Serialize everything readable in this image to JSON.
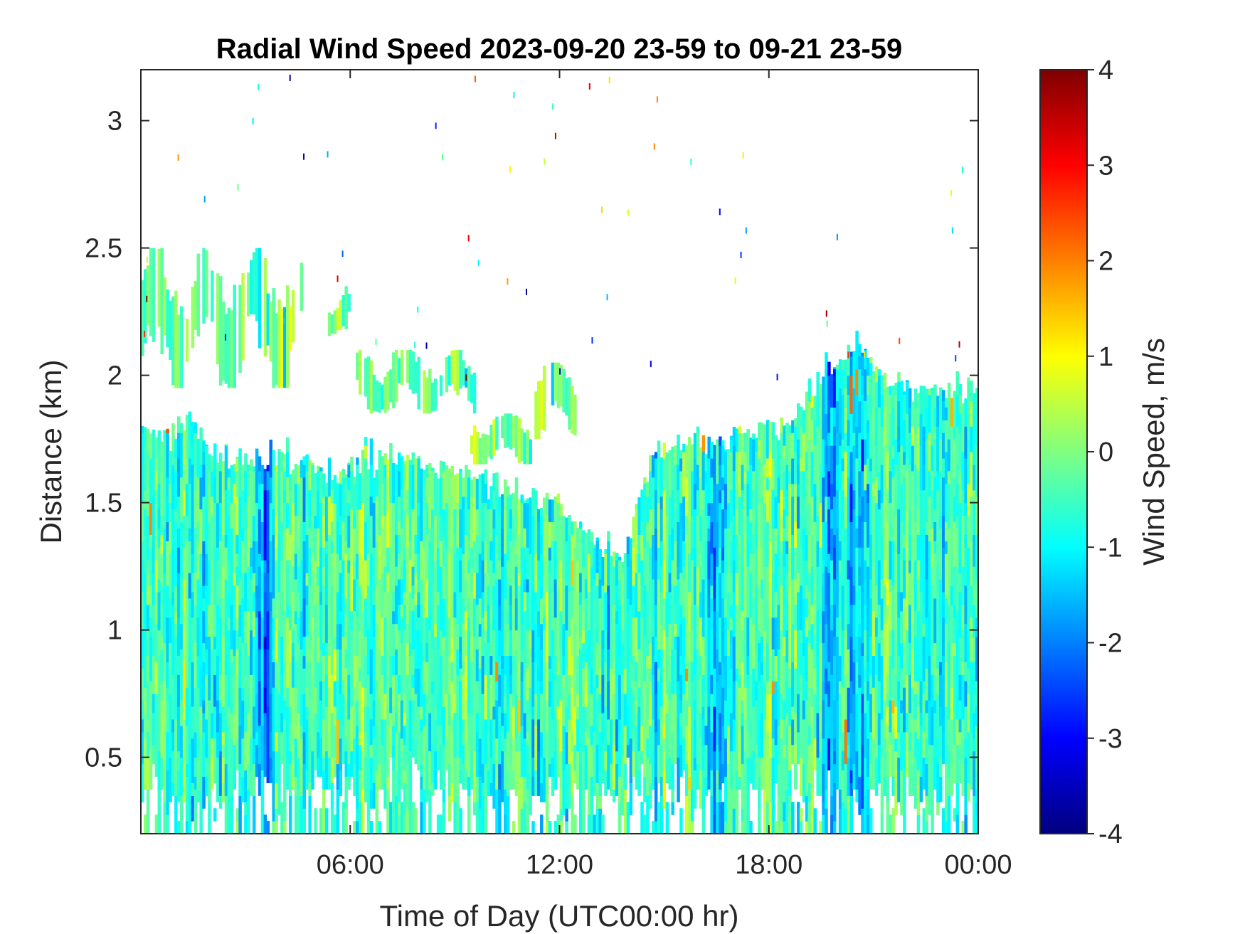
{
  "chart_data": {
    "type": "heatmap",
    "title": "Radial Wind Speed 2023-09-20 23-59 to 09-21 23-59",
    "xlabel": "Time of Day (UTC00:00 hr)",
    "ylabel": "Distance (km)",
    "colorbar_label": "Wind Speed, m/s",
    "x_range_hours": [
      0,
      24
    ],
    "x_ticks": [
      {
        "value": 6,
        "label": "06:00"
      },
      {
        "value": 12,
        "label": "12:00"
      },
      {
        "value": 18,
        "label": "18:00"
      },
      {
        "value": 24,
        "label": "00:00"
      }
    ],
    "ylim": [
      0.2,
      3.2
    ],
    "y_ticks": [
      {
        "value": 0.5,
        "label": "0.5"
      },
      {
        "value": 1,
        "label": "1"
      },
      {
        "value": 1.5,
        "label": "1.5"
      },
      {
        "value": 2,
        "label": "2"
      },
      {
        "value": 2.5,
        "label": "2.5"
      },
      {
        "value": 3,
        "label": "3"
      }
    ],
    "clim": [
      -4,
      4
    ],
    "colorbar_ticks": [
      {
        "value": 4,
        "label": "4"
      },
      {
        "value": 3,
        "label": "3"
      },
      {
        "value": 2,
        "label": "2"
      },
      {
        "value": 1,
        "label": "1"
      },
      {
        "value": 0,
        "label": "0"
      },
      {
        "value": -1,
        "label": "-1"
      },
      {
        "value": -2,
        "label": "-2"
      },
      {
        "value": -3,
        "label": "-3"
      },
      {
        "value": -4,
        "label": "-4"
      }
    ],
    "colormap": "jet",
    "grid": false,
    "data_top_profile_km": [
      {
        "hour": 0.0,
        "top": 1.8
      },
      {
        "hour": 0.8,
        "top": 1.75
      },
      {
        "hour": 1.4,
        "top": 1.85
      },
      {
        "hour": 2.0,
        "top": 1.7
      },
      {
        "hour": 4.0,
        "top": 1.68
      },
      {
        "hour": 5.5,
        "top": 1.62
      },
      {
        "hour": 6.5,
        "top": 1.68
      },
      {
        "hour": 8.0,
        "top": 1.67
      },
      {
        "hour": 9.0,
        "top": 1.62
      },
      {
        "hour": 10.0,
        "top": 1.58
      },
      {
        "hour": 11.0,
        "top": 1.55
      },
      {
        "hour": 12.0,
        "top": 1.48
      },
      {
        "hour": 13.0,
        "top": 1.35
      },
      {
        "hour": 13.8,
        "top": 1.28
      },
      {
        "hour": 14.3,
        "top": 1.55
      },
      {
        "hour": 15.0,
        "top": 1.72
      },
      {
        "hour": 16.5,
        "top": 1.74
      },
      {
        "hour": 17.5,
        "top": 1.8
      },
      {
        "hour": 18.5,
        "top": 1.82
      },
      {
        "hour": 19.5,
        "top": 2.0
      },
      {
        "hour": 20.5,
        "top": 2.12
      },
      {
        "hour": 21.5,
        "top": 1.98
      },
      {
        "hour": 22.5,
        "top": 1.95
      },
      {
        "hour": 23.5,
        "top": 1.95
      },
      {
        "hour": 24.0,
        "top": 1.95
      }
    ],
    "cloud_layers_km": [
      {
        "hour_start": 0.0,
        "hour_end": 4.6,
        "bottom": 1.95,
        "top": 2.5
      },
      {
        "hour_start": 5.2,
        "hour_end": 6.0,
        "bottom": 2.15,
        "top": 2.35
      },
      {
        "hour_start": 6.2,
        "hour_end": 9.6,
        "bottom": 1.85,
        "top": 2.1
      },
      {
        "hour_start": 9.5,
        "hour_end": 11.2,
        "bottom": 1.65,
        "top": 1.85
      },
      {
        "hour_start": 11.3,
        "hour_end": 12.4,
        "bottom": 1.75,
        "top": 2.05
      }
    ],
    "dominant_values_ms": {
      "background": -0.5,
      "blue_streaks_hours": [
        3.5,
        16.5,
        19.8,
        20.5
      ],
      "min_streak_value": -3.5,
      "max_spot_value": 2.5
    }
  }
}
